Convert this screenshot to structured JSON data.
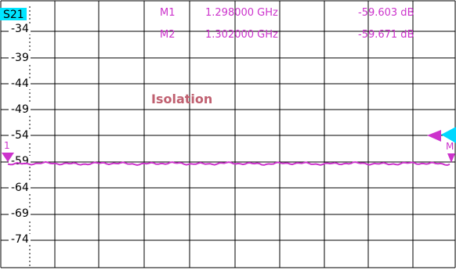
{
  "plot": {
    "trace_label": "S21",
    "title": "Isolation",
    "markers": [
      {
        "name": "M1",
        "freq": "1.298000 GHz",
        "value": "-59.603 dB"
      },
      {
        "name": "M2",
        "freq": "1.302000 GHz",
        "value": "-59.671 dB"
      }
    ],
    "y_tick_labels": [
      "-34",
      "-39",
      "-44",
      "-49",
      "-54",
      "-59",
      "-64",
      "-69",
      "-74"
    ],
    "left_marker_label": "1",
    "right_marker_label": "M"
  },
  "chart_data": {
    "type": "line",
    "ylim": [
      -79,
      -29
    ],
    "y_ticks": [
      -34,
      -39,
      -44,
      -49,
      -54,
      -59,
      -64,
      -69,
      -74
    ],
    "series": [
      {
        "name": "S21",
        "values": []
      }
    ]
  },
  "colors": {
    "grid": "#000000",
    "trace": "#cc33cc",
    "marker_text": "#cc33cc",
    "label_bg": "#00e5ff",
    "title": "#c06070",
    "right_marker": "#00d7ff",
    "left_marker": "#cc33cc"
  }
}
